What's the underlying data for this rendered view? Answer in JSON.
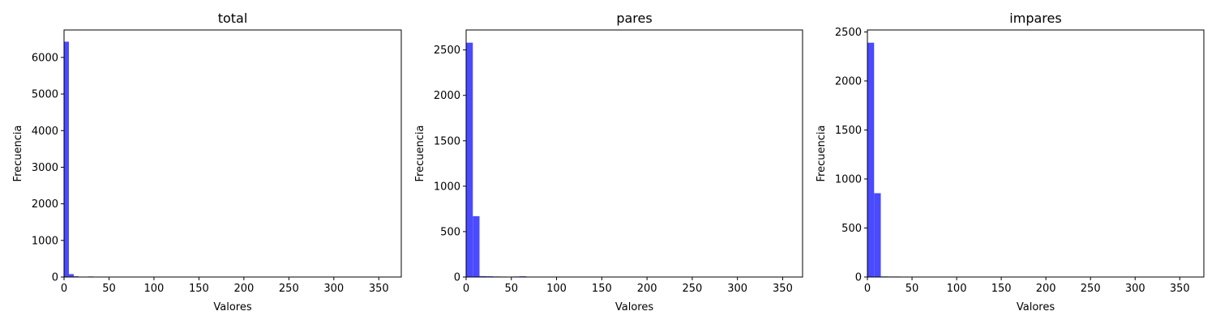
{
  "chart_data": [
    {
      "type": "bar",
      "title": "total",
      "xlabel": "Valores",
      "ylabel": "Frecuencia",
      "xlim": [
        0,
        375
      ],
      "ylim": [
        0,
        6750
      ],
      "xticks": [
        0,
        50,
        100,
        150,
        200,
        250,
        300,
        350
      ],
      "yticks": [
        0,
        1000,
        2000,
        3000,
        4000,
        5000,
        6000
      ],
      "bin_width": 5.4,
      "bins": [
        {
          "x0": 0,
          "x1": 5.4,
          "value": 6430
        },
        {
          "x0": 5.4,
          "x1": 10.8,
          "value": 80
        },
        {
          "x0": 10.8,
          "x1": 16.2,
          "value": 20
        },
        {
          "x0": 21.6,
          "x1": 27,
          "value": 8
        },
        {
          "x0": 27,
          "x1": 32.4,
          "value": 15
        },
        {
          "x0": 48.6,
          "x1": 54,
          "value": 5
        }
      ],
      "color": "#4a4aff"
    },
    {
      "type": "bar",
      "title": "pares",
      "xlabel": "Valores",
      "ylabel": "Frecuencia",
      "xlim": [
        0,
        372
      ],
      "ylim": [
        0,
        2720
      ],
      "xticks": [
        0,
        50,
        100,
        150,
        200,
        250,
        300,
        350
      ],
      "yticks": [
        0,
        500,
        1000,
        1500,
        2000,
        2500
      ],
      "bin_width": 7.4,
      "bins": [
        {
          "x0": 0,
          "x1": 7.4,
          "value": 2580
        },
        {
          "x0": 7.4,
          "x1": 14.8,
          "value": 670
        },
        {
          "x0": 14.8,
          "x1": 22.2,
          "value": 10
        },
        {
          "x0": 22.2,
          "x1": 29.6,
          "value": 8
        },
        {
          "x0": 29.6,
          "x1": 37,
          "value": 6
        },
        {
          "x0": 37,
          "x1": 44.4,
          "value": 5
        },
        {
          "x0": 51.8,
          "x1": 59.2,
          "value": 6
        },
        {
          "x0": 59.2,
          "x1": 66.6,
          "value": 8
        },
        {
          "x0": 364.6,
          "x1": 372,
          "value": 4
        }
      ],
      "color": "#4a4aff"
    },
    {
      "type": "bar",
      "title": "impares",
      "xlabel": "Valores",
      "ylabel": "Frecuencia",
      "xlim": [
        0,
        377
      ],
      "ylim": [
        0,
        2520
      ],
      "xticks": [
        0,
        50,
        100,
        150,
        200,
        250,
        300,
        350
      ],
      "yticks": [
        0,
        500,
        1000,
        1500,
        2000,
        2500
      ],
      "bin_width": 7.5,
      "bins": [
        {
          "x0": 0,
          "x1": 7.5,
          "value": 2390
        },
        {
          "x0": 7.5,
          "x1": 15,
          "value": 855
        },
        {
          "x0": 15,
          "x1": 22.5,
          "value": 6
        },
        {
          "x0": 22.5,
          "x1": 30,
          "value": 5
        },
        {
          "x0": 30,
          "x1": 37.5,
          "value": 5
        },
        {
          "x0": 37.5,
          "x1": 45,
          "value": 4
        },
        {
          "x0": 45,
          "x1": 52.5,
          "value": 4
        },
        {
          "x0": 369.5,
          "x1": 377,
          "value": 4
        }
      ],
      "color": "#4a4aff"
    }
  ]
}
